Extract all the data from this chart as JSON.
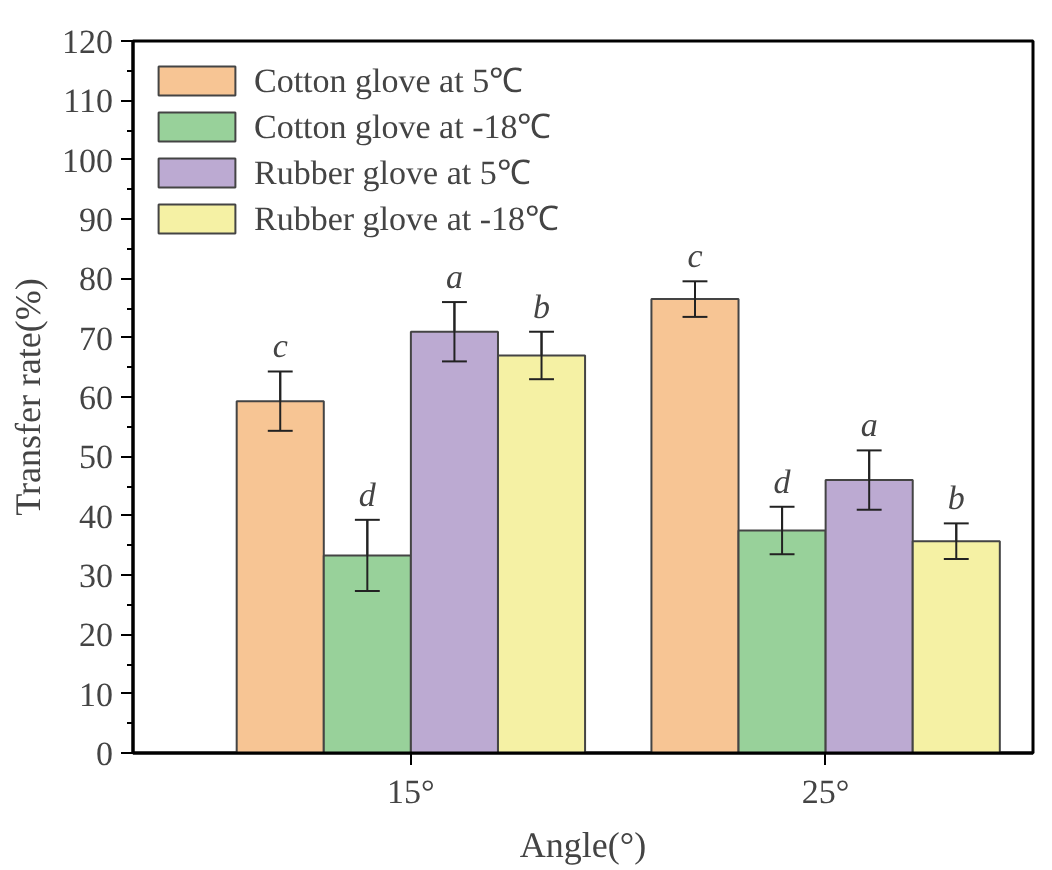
{
  "chart_data": {
    "type": "bar",
    "xlabel": "Angle(°)",
    "ylabel": "Transfer rate(%)",
    "categories": [
      "15°",
      "25°"
    ],
    "series": [
      {
        "name": "Cotton glove at 5℃",
        "color": "#f7c594",
        "values": [
          59.3,
          76.5
        ],
        "errors": [
          5,
          3
        ],
        "value_labels": [
          "c",
          "c"
        ]
      },
      {
        "name": "Cotton glove at -18℃",
        "color": "#98d19a",
        "values": [
          33.3,
          37.5
        ],
        "errors": [
          6,
          4
        ],
        "value_labels": [
          "d",
          "d"
        ]
      },
      {
        "name": "Rubber glove at 5℃",
        "color": "#bcaad2",
        "values": [
          71,
          46
        ],
        "errors": [
          5,
          5
        ],
        "value_labels": [
          "a",
          "a"
        ]
      },
      {
        "name": "Rubber glove at -18℃",
        "color": "#f5f1a4",
        "values": [
          67,
          35.7
        ],
        "errors": [
          4,
          3
        ],
        "value_labels": [
          "b",
          "b"
        ]
      }
    ],
    "ylim": [
      0,
      120
    ],
    "yticks": [
      0,
      10,
      20,
      30,
      40,
      50,
      60,
      70,
      80,
      90,
      100,
      110,
      120
    ],
    "legend": "top left",
    "grid": false
  }
}
